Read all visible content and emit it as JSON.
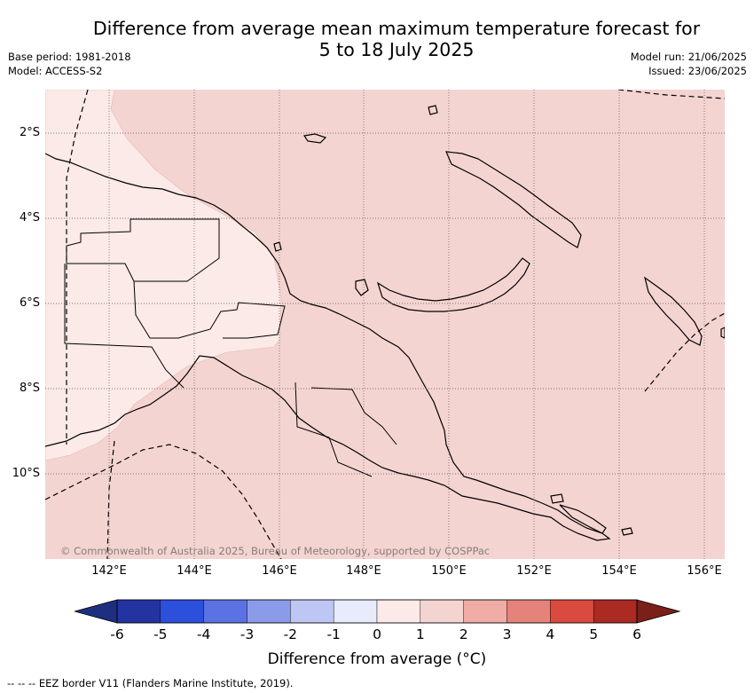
{
  "title": {
    "line1": "Difference from average mean maximum temperature forecast for",
    "line2": "5 to 18 July 2025"
  },
  "meta": {
    "base_period": "Base period: 1981-2018",
    "model": "Model: ACCESS-S2",
    "model_run": "Model run: 21/06/2025",
    "issued": "Issued: 23/06/2025"
  },
  "map": {
    "longitude_range": [
      140.5,
      156.5
    ],
    "latitude_range": [
      -12.0,
      -1.0
    ],
    "x_ticks": [
      "142°E",
      "144°E",
      "146°E",
      "148°E",
      "150°E",
      "152°E",
      "154°E",
      "156°E"
    ],
    "y_ticks": [
      "2°S",
      "4°S",
      "6°S",
      "8°S",
      "10°S"
    ],
    "grid": "dotted",
    "copyright": "© Commonwealth of Australia 2025, Bureau of Meteorology, supported by COSPPac",
    "anomaly_classes": [
      {
        "range": "0 to 1 °C",
        "color": "#fbeae7"
      },
      {
        "range": "1 to 2 °C",
        "color": "#f4d4d1"
      }
    ]
  },
  "colorbar": {
    "labels": [
      "-6",
      "-5",
      "-4",
      "-3",
      "-2",
      "-1",
      "0",
      "1",
      "2",
      "3",
      "4",
      "5",
      "6"
    ],
    "colors": [
      "#23339f",
      "#2c4fdc",
      "#5a72e3",
      "#8c9be9",
      "#bec6f3",
      "#e7ebfb",
      "#fbeae7",
      "#f4d4d1",
      "#efada5",
      "#e5827a",
      "#da4a3e",
      "#ab2a22"
    ],
    "under_color": "#1e2f82",
    "over_color": "#7a2019",
    "title": "Difference from average (°C)"
  },
  "footer": "--  --  -- EEZ border V11 (Flanders Marine Institute, 2019)."
}
